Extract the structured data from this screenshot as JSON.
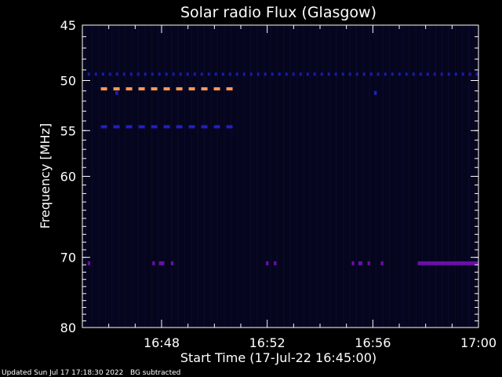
{
  "chart_data": {
    "type": "heatmap",
    "title": "Solar radio Flux (Glasgow)",
    "ylabel": "Frequency [MHz]",
    "xlabel": "Start Time (17-Jul-22 16:45:00)",
    "footer": "Updated Sun Jul 17 17:18:30 2022   BG subtracted",
    "x_range_minutes": [
      0,
      15
    ],
    "y_range_mhz": [
      45,
      80
    ],
    "y_ticks": [
      {
        "value": 45,
        "label": "45"
      },
      {
        "value": 50,
        "label": "50"
      },
      {
        "value": 55,
        "label": "55"
      },
      {
        "value": 60,
        "label": "60"
      },
      {
        "value": 70,
        "label": "70"
      },
      {
        "value": 80,
        "label": "80"
      }
    ],
    "x_ticks": [
      {
        "value": 3,
        "label": "16:48"
      },
      {
        "value": 7,
        "label": "16:52"
      },
      {
        "value": 11,
        "label": "16:56"
      },
      {
        "value": 15,
        "label": "17:00"
      }
    ],
    "background_color": "#05051e",
    "features": [
      {
        "name": "dashed-band-orange",
        "freq": 50.8,
        "t_start": 0.7,
        "t_end": 5.7,
        "color": "#ff9a55",
        "style": "dashed"
      },
      {
        "name": "dashed-band-blue-top",
        "freq": 49.4,
        "t_start": 0.2,
        "t_end": 15,
        "color": "#1a1ab0",
        "style": "dotted"
      },
      {
        "name": "dashed-band-blue",
        "freq": 54.6,
        "t_start": 0.7,
        "t_end": 5.7,
        "color": "#2020c0",
        "style": "dashed"
      },
      {
        "name": "band-70-right",
        "freq": 70.8,
        "t_start": 12.7,
        "t_end": 15,
        "color": "#6a0fa8",
        "style": "solid"
      },
      {
        "name": "blip-70-1",
        "freq": 70.8,
        "t_start": 0.2,
        "t_end": 0.3,
        "color": "#6a0fa8",
        "style": "solid"
      },
      {
        "name": "blip-70-2",
        "freq": 70.8,
        "t_start": 2.65,
        "t_end": 2.75,
        "color": "#6a0fa8",
        "style": "solid"
      },
      {
        "name": "blip-70-3",
        "freq": 70.8,
        "t_start": 2.9,
        "t_end": 3.1,
        "color": "#6a0fa8",
        "style": "solid"
      },
      {
        "name": "blip-70-4",
        "freq": 70.8,
        "t_start": 3.35,
        "t_end": 3.45,
        "color": "#6a0fa8",
        "style": "solid"
      },
      {
        "name": "blip-70-5",
        "freq": 70.8,
        "t_start": 6.95,
        "t_end": 7.05,
        "color": "#6a0fa8",
        "style": "solid"
      },
      {
        "name": "blip-70-6",
        "freq": 70.8,
        "t_start": 7.25,
        "t_end": 7.35,
        "color": "#6a0fa8",
        "style": "solid"
      },
      {
        "name": "blip-70-7",
        "freq": 70.8,
        "t_start": 10.2,
        "t_end": 10.3,
        "color": "#6a0fa8",
        "style": "solid"
      },
      {
        "name": "blip-70-8",
        "freq": 70.8,
        "t_start": 10.45,
        "t_end": 10.6,
        "color": "#6a0fa8",
        "style": "solid"
      },
      {
        "name": "blip-70-9",
        "freq": 70.8,
        "t_start": 10.8,
        "t_end": 10.9,
        "color": "#6a0fa8",
        "style": "solid"
      },
      {
        "name": "blip-70-10",
        "freq": 70.8,
        "t_start": 11.3,
        "t_end": 11.4,
        "color": "#6a0fa8",
        "style": "solid"
      },
      {
        "name": "dot-51-a",
        "freq": 51.2,
        "t_start": 1.25,
        "t_end": 1.35,
        "color": "#2020c0",
        "style": "solid"
      },
      {
        "name": "dot-51-b",
        "freq": 51.2,
        "t_start": 11.05,
        "t_end": 11.15,
        "color": "#2020c0",
        "style": "solid"
      }
    ]
  }
}
